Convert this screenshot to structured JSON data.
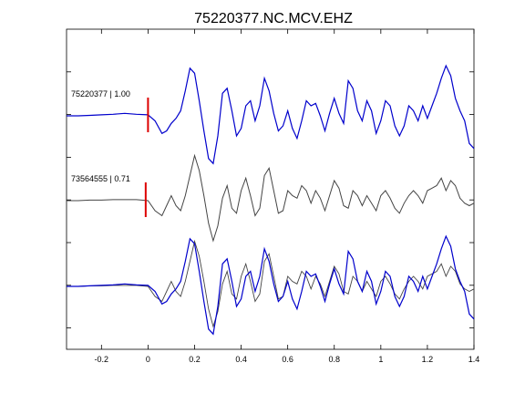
{
  "chart_data": {
    "type": "line",
    "title": "75220377.NC.MCV.EHZ",
    "xlabel": "",
    "ylabel": "",
    "xlim": [
      -0.35,
      1.4
    ],
    "x_ticks": [
      -0.2,
      0,
      0.2,
      0.4,
      0.6,
      0.8,
      1,
      1.2,
      1.4
    ],
    "x_tick_labels": [
      "-0.2",
      "0",
      "0.2",
      "0.4",
      "0.6",
      "0.8",
      "1",
      "1.2",
      "1.4"
    ],
    "grid": false,
    "colors": {
      "blue": "#0000cc",
      "gray": "#444444",
      "marker": "#dd0000",
      "axes": "#000000"
    },
    "traces": [
      {
        "label": "75220377 | 1.00",
        "color": "blue",
        "pick_time": 0
      },
      {
        "label": "73564555 | 0.71",
        "color": "gray",
        "pick_time": -0.01
      }
    ],
    "series": [
      {
        "color": "blue",
        "x": [
          -0.35,
          -0.3,
          -0.25,
          -0.2,
          -0.15,
          -0.1,
          -0.05,
          0.0,
          0.03,
          0.06,
          0.08,
          0.1,
          0.12,
          0.14,
          0.16,
          0.18,
          0.2,
          0.22,
          0.24,
          0.26,
          0.28,
          0.3,
          0.32,
          0.34,
          0.36,
          0.38,
          0.4,
          0.42,
          0.44,
          0.46,
          0.48,
          0.5,
          0.52,
          0.54,
          0.56,
          0.58,
          0.6,
          0.62,
          0.64,
          0.66,
          0.68,
          0.7,
          0.72,
          0.74,
          0.76,
          0.78,
          0.8,
          0.82,
          0.84,
          0.86,
          0.88,
          0.9,
          0.92,
          0.94,
          0.96,
          0.98,
          1.0,
          1.02,
          1.04,
          1.06,
          1.08,
          1.1,
          1.12,
          1.14,
          1.16,
          1.18,
          1.2,
          1.22,
          1.24,
          1.26,
          1.28,
          1.3,
          1.32,
          1.34,
          1.36,
          1.38,
          1.4
        ],
        "y": [
          0,
          0,
          0.01,
          0.02,
          0.03,
          0.05,
          0.03,
          0.02,
          -0.1,
          -0.35,
          -0.3,
          -0.15,
          -0.05,
          0.1,
          0.5,
          0.95,
          0.85,
          0.3,
          -0.3,
          -0.85,
          -0.95,
          -0.4,
          0.45,
          0.55,
          0.1,
          -0.4,
          -0.25,
          0.2,
          0.3,
          -0.1,
          0.2,
          0.75,
          0.5,
          0.05,
          -0.3,
          -0.2,
          0.1,
          -0.25,
          -0.45,
          -0.1,
          0.3,
          0.2,
          0.25,
          0.0,
          -0.3,
          0.05,
          0.35,
          0.05,
          -0.15,
          0.7,
          0.55,
          0.1,
          -0.1,
          0.3,
          0.1,
          -0.35,
          -0.1,
          0.3,
          0.2,
          -0.2,
          -0.4,
          -0.2,
          0.2,
          0.1,
          -0.1,
          0.2,
          -0.05,
          0.2,
          0.45,
          0.75,
          1.0,
          0.8,
          0.35,
          0.1,
          -0.1,
          -0.55,
          -0.65
        ]
      },
      {
        "color": "gray",
        "x": [
          -0.35,
          -0.3,
          -0.25,
          -0.2,
          -0.15,
          -0.1,
          -0.05,
          0.0,
          0.03,
          0.06,
          0.08,
          0.1,
          0.12,
          0.14,
          0.16,
          0.18,
          0.2,
          0.22,
          0.24,
          0.26,
          0.28,
          0.3,
          0.32,
          0.34,
          0.36,
          0.38,
          0.4,
          0.42,
          0.44,
          0.46,
          0.48,
          0.5,
          0.52,
          0.54,
          0.56,
          0.58,
          0.6,
          0.62,
          0.64,
          0.66,
          0.68,
          0.7,
          0.72,
          0.74,
          0.76,
          0.78,
          0.8,
          0.82,
          0.84,
          0.86,
          0.88,
          0.9,
          0.92,
          0.94,
          0.96,
          0.98,
          1.0,
          1.02,
          1.04,
          1.06,
          1.08,
          1.1,
          1.12,
          1.14,
          1.16,
          1.18,
          1.2,
          1.22,
          1.24,
          1.26,
          1.28,
          1.3,
          1.32,
          1.34,
          1.36,
          1.38,
          1.4
        ],
        "y": [
          0,
          0,
          0.01,
          0.01,
          0.02,
          0.02,
          0.02,
          0.0,
          -0.2,
          -0.3,
          -0.1,
          0.1,
          -0.1,
          -0.2,
          0.1,
          0.5,
          0.9,
          0.6,
          0.1,
          -0.45,
          -0.8,
          -0.5,
          0.05,
          0.3,
          -0.15,
          -0.25,
          0.2,
          0.45,
          0.1,
          -0.3,
          -0.15,
          0.5,
          0.65,
          0.2,
          -0.25,
          -0.2,
          0.2,
          0.1,
          0.05,
          0.3,
          0.2,
          -0.05,
          0.2,
          0.05,
          -0.2,
          0.1,
          0.4,
          0.25,
          -0.1,
          -0.15,
          0.2,
          0.1,
          -0.1,
          0.1,
          -0.05,
          -0.2,
          0.1,
          0.2,
          0.05,
          -0.15,
          -0.25,
          -0.05,
          0.1,
          0.2,
          0.1,
          -0.05,
          0.2,
          0.25,
          0.3,
          0.45,
          0.2,
          0.4,
          0.3,
          0.05,
          -0.05,
          -0.1,
          -0.05
        ]
      }
    ]
  }
}
